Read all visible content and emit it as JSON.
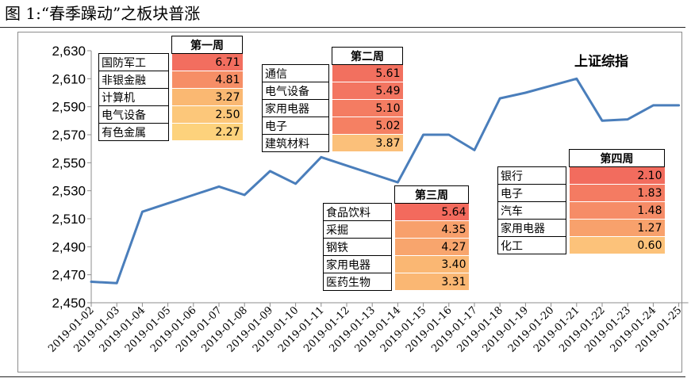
{
  "figure_title": "图 1:“春季躁动”之板块普涨",
  "chart_data": {
    "type": "line",
    "series": [
      {
        "name": "上证综指",
        "color": "#4a7ebb",
        "x": [
          "2019-01-02",
          "2019-01-03",
          "2019-01-04",
          "2019-01-05",
          "2019-01-06",
          "2019-01-07",
          "2019-01-08",
          "2019-01-09",
          "2019-01-10",
          "2019-01-11",
          "2019-01-12",
          "2019-01-13",
          "2019-01-14",
          "2019-01-15",
          "2019-01-16",
          "2019-01-17",
          "2019-01-18",
          "2019-01-19",
          "2019-01-20",
          "2019-01-21",
          "2019-01-22",
          "2019-01-23",
          "2019-01-24",
          "2019-01-25"
        ],
        "values": [
          2465,
          2464,
          2515,
          2521,
          2527,
          2533,
          2527,
          2544,
          2535,
          2554,
          2548,
          2542,
          2536,
          2570,
          2570,
          2559,
          2596,
          2600,
          2605,
          2610,
          2580,
          2581,
          2591,
          2591
        ]
      }
    ],
    "ylim": [
      2450,
      2630
    ],
    "yticks": [
      2450,
      2470,
      2490,
      2510,
      2530,
      2550,
      2570,
      2590,
      2610,
      2630
    ],
    "ytick_labels": [
      "2,450",
      "2,470",
      "2,490",
      "2,510",
      "2,530",
      "2,550",
      "2,570",
      "2,590",
      "2,610",
      "2,630"
    ],
    "xlabel": "",
    "ylabel": "",
    "grid": false,
    "legend": "none"
  },
  "tables": [
    {
      "header": "第一周",
      "rows": [
        {
          "name": "国防军工",
          "value": "6.71",
          "color": "#f26e5f"
        },
        {
          "name": "非银金融",
          "value": "4.81",
          "color": "#f68e66"
        },
        {
          "name": "计算机",
          "value": "3.27",
          "color": "#fab872"
        },
        {
          "name": "电气设备",
          "value": "2.50",
          "color": "#fcc77a"
        },
        {
          "name": "有色金属",
          "value": "2.27",
          "color": "#fdd27c"
        }
      ]
    },
    {
      "header": "第二周",
      "rows": [
        {
          "name": "通信",
          "value": "5.61",
          "color": "#f2705f"
        },
        {
          "name": "电气设备",
          "value": "5.49",
          "color": "#f37561"
        },
        {
          "name": "家用电器",
          "value": "5.10",
          "color": "#f47c62"
        },
        {
          "name": "电子",
          "value": "5.02",
          "color": "#f58063"
        },
        {
          "name": "建筑材料",
          "value": "3.87",
          "color": "#fbc07a"
        }
      ]
    },
    {
      "header": "第三周",
      "rows": [
        {
          "name": "食品饮料",
          "value": "5.64",
          "color": "#f36a5d"
        },
        {
          "name": "采掘",
          "value": "4.35",
          "color": "#f8a06c"
        },
        {
          "name": "钢铁",
          "value": "4.27",
          "color": "#f8a56d"
        },
        {
          "name": "家用电器",
          "value": "3.40",
          "color": "#fab773"
        },
        {
          "name": "医药生物",
          "value": "3.31",
          "color": "#fab773"
        }
      ]
    },
    {
      "header": "第四周",
      "rows": [
        {
          "name": "银行",
          "value": "2.10",
          "color": "#f26c5e"
        },
        {
          "name": "电子",
          "value": "1.83",
          "color": "#f47b62"
        },
        {
          "name": "汽车",
          "value": "1.48",
          "color": "#f68c67"
        },
        {
          "name": "家用电器",
          "value": "1.27",
          "color": "#f8a16c"
        },
        {
          "name": "化工",
          "value": "0.60",
          "color": "#fcc27a"
        }
      ]
    }
  ]
}
